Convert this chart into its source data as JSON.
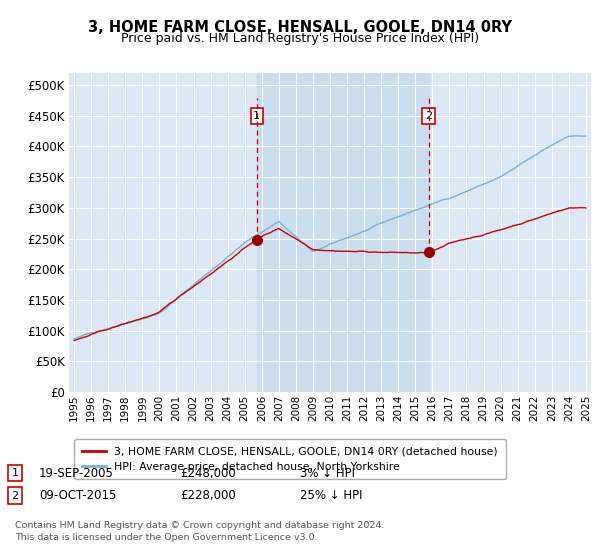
{
  "title": "3, HOME FARM CLOSE, HENSALL, GOOLE, DN14 0RY",
  "subtitle": "Price paid vs. HM Land Registry's House Price Index (HPI)",
  "legend_line1": "3, HOME FARM CLOSE, HENSALL, GOOLE, DN14 0RY (detached house)",
  "legend_line2": "HPI: Average price, detached house, North Yorkshire",
  "sale1_date": "19-SEP-2005",
  "sale1_price": 248000,
  "sale1_label": "3% ↓ HPI",
  "sale2_date": "09-OCT-2015",
  "sale2_price": 228000,
  "sale2_label": "25% ↓ HPI",
  "footer": "Contains HM Land Registry data © Crown copyright and database right 2024.\nThis data is licensed under the Open Government Licence v3.0.",
  "hpi_color": "#7bafd4",
  "price_color": "#cc0000",
  "marker_color": "#990000",
  "dashed_color": "#cc0000",
  "bg_color": "#dce8f5",
  "shade_color": "#c8ddf0",
  "ylim_min": 0,
  "ylim_max": 520000,
  "ytick_step": 50000,
  "x_start_year": 1995,
  "x_end_year": 2025
}
